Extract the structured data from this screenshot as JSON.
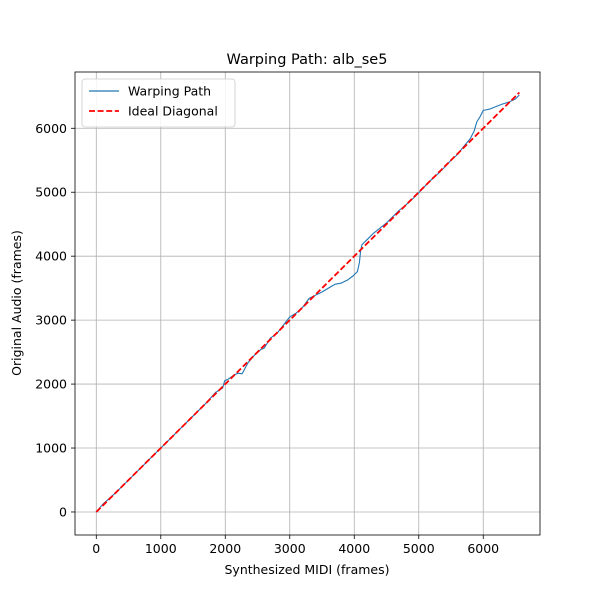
{
  "chart_data": {
    "type": "line",
    "title": "Warping Path: alb_se5",
    "xlabel": "Synthesized MIDI (frames)",
    "ylabel": "Original Audio (frames)",
    "xlim": [
      -330,
      6880
    ],
    "ylim": [
      -360,
      6880
    ],
    "xticks": [
      0,
      1000,
      2000,
      3000,
      4000,
      5000,
      6000
    ],
    "yticks": [
      0,
      1000,
      2000,
      3000,
      4000,
      5000,
      6000
    ],
    "grid": true,
    "legend_position": "top-left",
    "series": [
      {
        "name": "Warping Path",
        "style": "solid",
        "color": "#1f77b4",
        "x": [
          0,
          100,
          300,
          500,
          700,
          900,
          1100,
          1300,
          1500,
          1700,
          1850,
          1900,
          1960,
          1990,
          2050,
          2150,
          2200,
          2260,
          2350,
          2450,
          2550,
          2600,
          2700,
          2800,
          2900,
          3000,
          3100,
          3200,
          3300,
          3400,
          3500,
          3600,
          3700,
          3800,
          3900,
          3980,
          4050,
          4080,
          4100,
          4120,
          4200,
          4300,
          4400,
          4500,
          4600,
          4700,
          4800,
          4900,
          5000,
          5100,
          5200,
          5300,
          5400,
          5500,
          5600,
          5700,
          5800,
          5860,
          5900,
          5950,
          6000,
          6050,
          6100,
          6200,
          6300,
          6400,
          6500,
          6560
        ],
        "y": [
          0,
          120,
          300,
          500,
          700,
          900,
          1100,
          1300,
          1500,
          1700,
          1870,
          1900,
          1940,
          2050,
          2080,
          2150,
          2170,
          2160,
          2330,
          2450,
          2540,
          2560,
          2720,
          2790,
          2920,
          3050,
          3110,
          3200,
          3340,
          3390,
          3440,
          3500,
          3560,
          3580,
          3630,
          3690,
          3760,
          3900,
          4100,
          4180,
          4260,
          4360,
          4440,
          4520,
          4620,
          4720,
          4800,
          4890,
          4990,
          5100,
          5200,
          5290,
          5390,
          5500,
          5590,
          5720,
          5840,
          5960,
          6100,
          6180,
          6280,
          6290,
          6300,
          6340,
          6380,
          6410,
          6460,
          6520
        ]
      },
      {
        "name": "Ideal Diagonal",
        "style": "dashed",
        "color": "#ff0000",
        "x": [
          0,
          6560
        ],
        "y": [
          0,
          6560
        ]
      }
    ]
  }
}
